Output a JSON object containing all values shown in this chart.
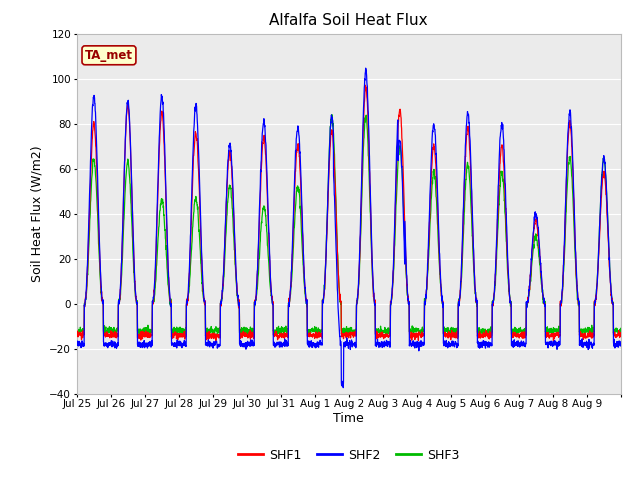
{
  "title": "Alfalfa Soil Heat Flux",
  "xlabel": "Time",
  "ylabel": "Soil Heat Flux (W/m2)",
  "ylim": [
    -40,
    120
  ],
  "yticks": [
    -40,
    -20,
    0,
    20,
    40,
    60,
    80,
    100,
    120
  ],
  "colors": {
    "SHF1": "#ff0000",
    "SHF2": "#0000ff",
    "SHF3": "#00bb00"
  },
  "legend_box_color": "#ffffcc",
  "legend_box_border": "#aa0000",
  "background_color": "#ebebeb",
  "outer_background": "#ffffff",
  "grid_color": "#ffffff",
  "annotation_text": "TA_met",
  "x_tick_labels": [
    "Jul 25",
    "Jul 26",
    "Jul 27",
    "Jul 28",
    "Jul 29",
    "Jul 30",
    "Jul 31",
    "Aug 1",
    "Aug 2",
    "Aug 3",
    "Aug 4",
    "Aug 5",
    "Aug 6",
    "Aug 7",
    "Aug 8",
    "Aug 9"
  ],
  "n_days": 16,
  "points_per_day": 144
}
